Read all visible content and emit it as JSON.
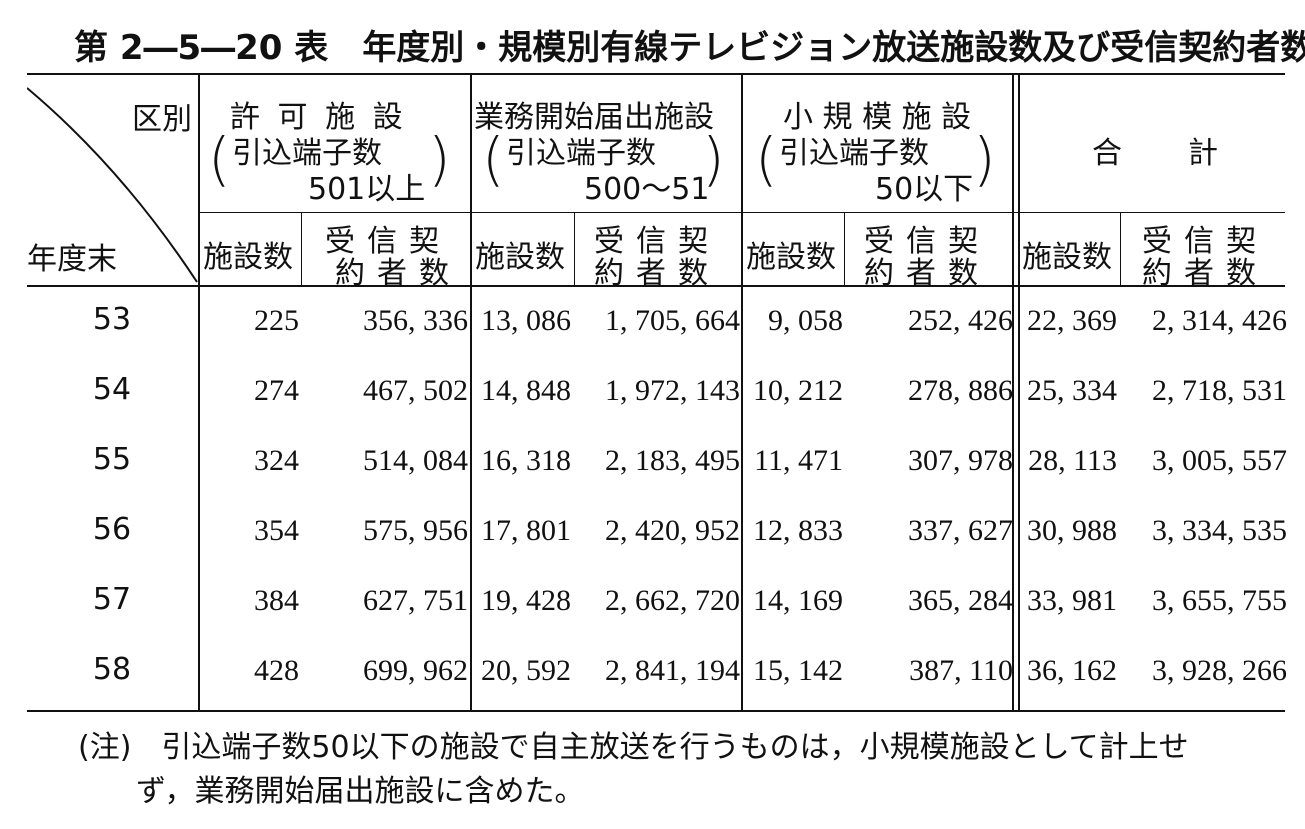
{
  "title": {
    "number": "第 2―5―20 表",
    "text": "年度別・規模別有線テレビジョン放送施設数及び受信契約者数"
  },
  "header": {
    "corner_row": "区別",
    "corner_col": "年度末",
    "groups": [
      {
        "name": "許 可 施 設",
        "sub1": "引込端子数",
        "sub2": "501以上",
        "paren_open": "(",
        "paren_close": ")"
      },
      {
        "name": "業務開始届出施設",
        "sub1": "引込端子数",
        "sub2": "500～51",
        "paren_open": "(",
        "paren_close": ")"
      },
      {
        "name": "小 規 模 施 設",
        "sub1": "引込端子数",
        "sub2": "50以下",
        "paren_open": "(",
        "paren_close": ")"
      },
      {
        "name": "合　　計"
      }
    ],
    "sub_facility": "施設数",
    "sub_contract_top": "受信契",
    "sub_contract_bottom": "約者数"
  },
  "rows": [
    {
      "year": "53",
      "v": [
        "225",
        "356, 336",
        "13, 086",
        "1, 705, 664",
        "9, 058",
        "252, 426",
        "22, 369",
        "2, 314, 426"
      ]
    },
    {
      "year": "54",
      "v": [
        "274",
        "467, 502",
        "14, 848",
        "1, 972, 143",
        "10, 212",
        "278, 886",
        "25, 334",
        "2, 718, 531"
      ]
    },
    {
      "year": "55",
      "v": [
        "324",
        "514, 084",
        "16, 318",
        "2, 183, 495",
        "11, 471",
        "307, 978",
        "28, 113",
        "3, 005, 557"
      ]
    },
    {
      "year": "56",
      "v": [
        "354",
        "575, 956",
        "17, 801",
        "2, 420, 952",
        "12, 833",
        "337, 627",
        "30, 988",
        "3, 334, 535"
      ]
    },
    {
      "year": "57",
      "v": [
        "384",
        "627, 751",
        "19, 428",
        "2, 662, 720",
        "14, 169",
        "365, 284",
        "33, 981",
        "3, 655, 755"
      ]
    },
    {
      "year": "58",
      "v": [
        "428",
        "699, 962",
        "20, 592",
        "2, 841, 194",
        "15, 142",
        "387, 110",
        "36, 162",
        "3, 928, 266"
      ]
    }
  ],
  "note": {
    "line1": "(注)　引込端子数50以下の施設で自主放送を行うものは，小規模施設として計上せ",
    "line2": "ず，業務開始届出施設に含めた。"
  }
}
